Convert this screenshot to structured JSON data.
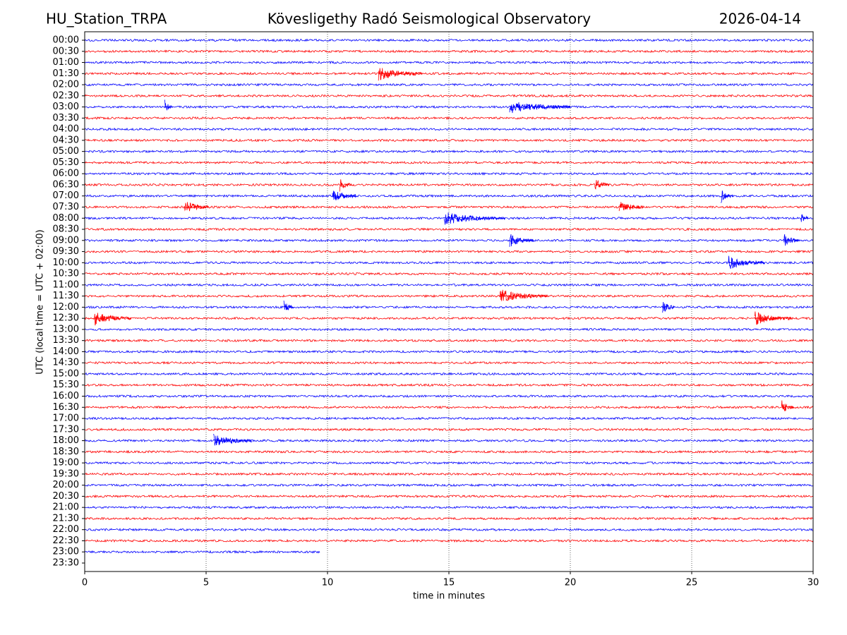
{
  "chart_data": {
    "type": "helicorder",
    "station": "HU_Station_TRPA",
    "title": "Kövesligethy Radó Seismological Observatory",
    "date": "2026-04-14",
    "ylabel": "UTC (local time = UTC + 02:00)",
    "xlabel": "time in minutes",
    "categories": [
      "00:00",
      "00:30",
      "01:00",
      "01:30",
      "02:00",
      "02:30",
      "03:00",
      "03:30",
      "04:00",
      "04:30",
      "05:00",
      "05:30",
      "06:00",
      "06:30",
      "07:00",
      "07:30",
      "08:00",
      "08:30",
      "09:00",
      "09:30",
      "10:00",
      "10:30",
      "11:00",
      "11:30",
      "12:00",
      "12:30",
      "13:00",
      "13:30",
      "14:00",
      "14:30",
      "15:00",
      "15:30",
      "16:00",
      "16:30",
      "17:00",
      "17:30",
      "18:00",
      "18:30",
      "19:00",
      "19:30",
      "20:00",
      "20:30",
      "21:00",
      "21:30",
      "22:00",
      "22:30",
      "23:00",
      "23:30"
    ],
    "trace_end": [
      30,
      30,
      30,
      30,
      30,
      30,
      30,
      30,
      30,
      30,
      30,
      30,
      30,
      30,
      30,
      30,
      30,
      30,
      30,
      30,
      30,
      30,
      30,
      30,
      30,
      30,
      30,
      30,
      30,
      30,
      30,
      30,
      30,
      30,
      30,
      30,
      30,
      30,
      30,
      30,
      30,
      30,
      30,
      30,
      30,
      30,
      9.7,
      null
    ],
    "events": [
      {
        "row": 3,
        "x": 12.1,
        "length": 1.8
      },
      {
        "row": 6,
        "x": 3.3,
        "length": 0.3
      },
      {
        "row": 6,
        "x": 17.5,
        "length": 2.5
      },
      {
        "row": 13,
        "x": 10.5,
        "length": 0.5
      },
      {
        "row": 13,
        "x": 21.0,
        "length": 0.6
      },
      {
        "row": 14,
        "x": 10.2,
        "length": 1.0
      },
      {
        "row": 14,
        "x": 26.2,
        "length": 0.5
      },
      {
        "row": 15,
        "x": 4.1,
        "length": 1.0
      },
      {
        "row": 15,
        "x": 22.0,
        "length": 1.0
      },
      {
        "row": 16,
        "x": 14.8,
        "length": 2.5
      },
      {
        "row": 16,
        "x": 29.5,
        "length": 0.3
      },
      {
        "row": 18,
        "x": 17.5,
        "length": 1.0
      },
      {
        "row": 18,
        "x": 28.8,
        "length": 0.6
      },
      {
        "row": 20,
        "x": 26.5,
        "length": 1.5
      },
      {
        "row": 23,
        "x": 17.1,
        "length": 2.0
      },
      {
        "row": 24,
        "x": 8.2,
        "length": 0.4
      },
      {
        "row": 24,
        "x": 23.8,
        "length": 0.5
      },
      {
        "row": 25,
        "x": 0.4,
        "length": 1.5
      },
      {
        "row": 25,
        "x": 27.6,
        "length": 1.5
      },
      {
        "row": 33,
        "x": 28.7,
        "length": 0.5
      },
      {
        "row": 36,
        "x": 5.3,
        "length": 1.6
      }
    ],
    "xlim": [
      0,
      30
    ],
    "xticks": [
      0,
      5,
      10,
      15,
      20,
      25,
      30
    ],
    "grid": true,
    "colors": [
      "#0000ff",
      "#ff0000"
    ]
  }
}
